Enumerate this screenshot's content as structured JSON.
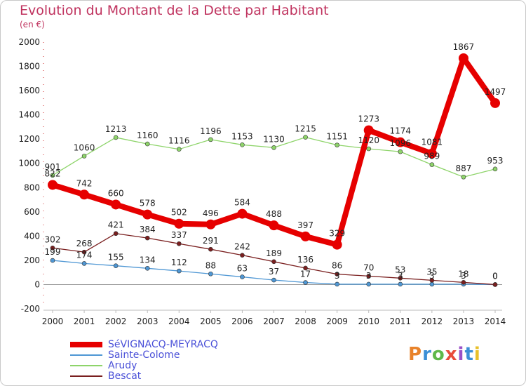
{
  "title": "Evolution du Montant de la Dette par Habitant",
  "subtitle": "(en €)",
  "logo": {
    "text": "Proxiti",
    "colors": [
      "#e8822a",
      "#3b8fd6",
      "#5fb84a",
      "#e84b3a",
      "#9a50c8",
      "#3b8fd6",
      "#e8c02a"
    ]
  },
  "chart_data": {
    "type": "line",
    "x": [
      "2000",
      "2001",
      "2002",
      "2003",
      "2004",
      "2005",
      "2006",
      "2007",
      "2008",
      "2009",
      "2010",
      "2011",
      "2012",
      "2013",
      "2014"
    ],
    "ylim": [
      -200,
      2000
    ],
    "yticks": [
      "-200",
      "0",
      "200",
      "400",
      "600",
      "800",
      "1000",
      "1200",
      "1400",
      "1600",
      "1800",
      "2000"
    ],
    "grid": false,
    "legend_position": "bottom-left",
    "series": [
      {
        "name": "SéVIGNACQ-MEYRACQ",
        "color": "#e60000",
        "width": 8,
        "marker": 7,
        "values": [
          822,
          742,
          660,
          578,
          502,
          496,
          584,
          488,
          397,
          329,
          1273,
          1174,
          1081,
          1867,
          1497
        ],
        "labels": [
          "822",
          "742",
          "660",
          "578",
          "502",
          "496",
          "584",
          "488",
          "397",
          "329",
          "1273",
          "1174",
          "1081",
          "1867",
          "1497"
        ]
      },
      {
        "name": "Sainte-Colome",
        "color": "#4f97d4",
        "width": 1.3,
        "marker": 3,
        "values": [
          199,
          174,
          155,
          134,
          112,
          88,
          63,
          37,
          17,
          3,
          3,
          3,
          3,
          3,
          0
        ],
        "labels": [
          "199",
          "174",
          "155",
          "134",
          "112",
          "88",
          "63",
          "37",
          "17",
          "3",
          "3",
          "3",
          "3",
          "3",
          "0"
        ]
      },
      {
        "name": "Arudy",
        "color": "#8ed46a",
        "width": 1.3,
        "marker": 3,
        "values": [
          901,
          1060,
          1213,
          1160,
          1116,
          1196,
          1153,
          1130,
          1215,
          1151,
          1120,
          1096,
          989,
          887,
          953
        ],
        "labels": [
          "901",
          "1060",
          "1213",
          "1160",
          "1116",
          "1196",
          "1153",
          "1130",
          "1215",
          "1151",
          "1120",
          "1096",
          "989",
          "887",
          "953"
        ]
      },
      {
        "name": "Bescat",
        "color": "#7a1f1f",
        "width": 1.3,
        "marker": 3,
        "values": [
          302,
          268,
          421,
          384,
          337,
          291,
          242,
          189,
          136,
          86,
          70,
          53,
          35,
          18,
          0
        ],
        "labels": [
          "302",
          "268",
          "421",
          "384",
          "337",
          "291",
          "242",
          "189",
          "136",
          "86",
          "70",
          "53",
          "35",
          "18",
          "0"
        ]
      }
    ]
  }
}
